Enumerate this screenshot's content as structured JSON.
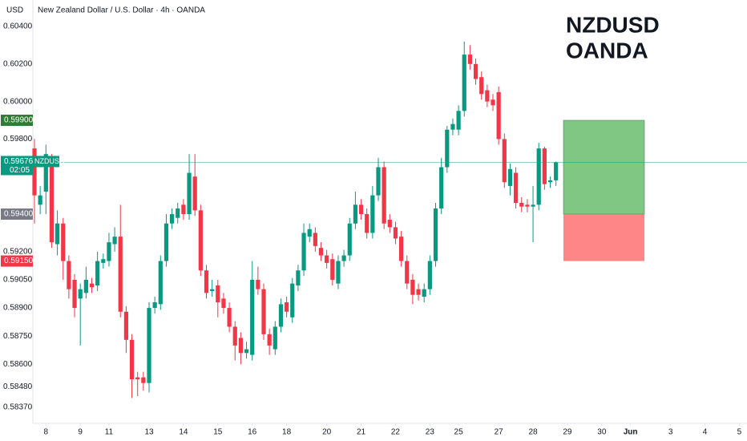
{
  "chart_data": {
    "type": "candlestick",
    "currency": "USD",
    "title": "New Zealand Dollar / U.S. Dollar · 4h · OANDA",
    "annotation": [
      "NZDUSD",
      "OANDA"
    ],
    "up_color": "#089981",
    "down_color": "#f23645",
    "open": [
      0.5975,
      0.5945,
      0.5952,
      0.5968,
      0.5924,
      0.5935,
      0.5915,
      0.5905,
      0.5895,
      0.5898,
      0.5903,
      0.5902,
      0.5914,
      0.5915,
      0.5924,
      0.5928,
      0.5888,
      0.5873,
      0.5853,
      0.5853,
      0.585,
      0.589,
      0.5892,
      0.5915,
      0.5935,
      0.5938,
      0.5945,
      0.594,
      0.596,
      0.5942,
      0.591,
      0.5899,
      0.5902,
      0.5895,
      0.589,
      0.588,
      0.5874,
      0.5866,
      0.5865,
      0.5905,
      0.59,
      0.5876,
      0.5868,
      0.588,
      0.5893,
      0.5885,
      0.5902,
      0.591,
      0.5928,
      0.593,
      0.5922,
      0.5918,
      0.5916,
      0.5903,
      0.5915,
      0.5918,
      0.5935,
      0.5945,
      0.594,
      0.593,
      0.595,
      0.5965,
      0.5937,
      0.5933,
      0.5928,
      0.5915,
      0.5905,
      0.59,
      0.5896,
      0.59,
      0.5915,
      0.5943,
      0.5965,
      0.5985,
      0.5985,
      0.5995,
      0.6025,
      0.602,
      0.6013,
      0.6006,
      0.6001,
      0.6005,
      0.598,
      0.5955,
      0.5962,
      0.5946,
      0.5945,
      0.5944,
      0.5945,
      0.5975,
      0.5957,
      0.5958
    ],
    "high": [
      0.598,
      0.5955,
      0.5977,
      0.5972,
      0.5942,
      0.5938,
      0.5918,
      0.5908,
      0.5903,
      0.5912,
      0.5906,
      0.592,
      0.5919,
      0.593,
      0.5933,
      0.5945,
      0.5891,
      0.5876,
      0.5856,
      0.5856,
      0.5893,
      0.5896,
      0.5918,
      0.594,
      0.5943,
      0.5946,
      0.5948,
      0.5972,
      0.5972,
      0.5945,
      0.5913,
      0.5905,
      0.5905,
      0.5898,
      0.5893,
      0.5883,
      0.5877,
      0.5872,
      0.5915,
      0.5912,
      0.5903,
      0.5879,
      0.5883,
      0.5895,
      0.5896,
      0.5906,
      0.5913,
      0.5935,
      0.5935,
      0.5933,
      0.5925,
      0.5921,
      0.5919,
      0.5918,
      0.5921,
      0.5938,
      0.5952,
      0.5948,
      0.5943,
      0.5955,
      0.597,
      0.5968,
      0.594,
      0.5936,
      0.5931,
      0.5918,
      0.5908,
      0.5903,
      0.5903,
      0.5918,
      0.5946,
      0.597,
      0.5987,
      0.5991,
      0.5998,
      0.6032,
      0.603,
      0.6023,
      0.6016,
      0.6009,
      0.6004,
      0.6008,
      0.5983,
      0.5967,
      0.5965,
      0.5949,
      0.5948,
      0.5955,
      0.5978,
      0.5976,
      0.596,
      0.5968
    ],
    "low": [
      0.5935,
      0.594,
      0.594,
      0.5922,
      0.5918,
      0.5905,
      0.5895,
      0.5885,
      0.587,
      0.5895,
      0.5898,
      0.5899,
      0.5911,
      0.5912,
      0.592,
      0.5885,
      0.5866,
      0.5842,
      0.5843,
      0.5846,
      0.5845,
      0.5887,
      0.5889,
      0.5912,
      0.5932,
      0.5935,
      0.5937,
      0.5937,
      0.5939,
      0.5907,
      0.5895,
      0.5896,
      0.5885,
      0.5887,
      0.5877,
      0.5862,
      0.586,
      0.5863,
      0.5862,
      0.5897,
      0.5873,
      0.5865,
      0.5865,
      0.5877,
      0.5885,
      0.5882,
      0.5899,
      0.5907,
      0.5925,
      0.592,
      0.5915,
      0.5911,
      0.5902,
      0.59,
      0.5912,
      0.5915,
      0.5932,
      0.5937,
      0.5927,
      0.5927,
      0.5947,
      0.5932,
      0.593,
      0.5924,
      0.5912,
      0.59,
      0.5892,
      0.5894,
      0.5893,
      0.5897,
      0.5912,
      0.594,
      0.5962,
      0.5982,
      0.5982,
      0.5992,
      0.6017,
      0.6009,
      0.6001,
      0.5997,
      0.5995,
      0.5977,
      0.5954,
      0.595,
      0.5943,
      0.5941,
      0.5941,
      0.5925,
      0.5942,
      0.5953,
      0.5954,
      0.5955
    ],
    "close": [
      0.595,
      0.595,
      0.5972,
      0.5925,
      0.5935,
      0.5915,
      0.59,
      0.589,
      0.59,
      0.5905,
      0.5901,
      0.5915,
      0.5916,
      0.5925,
      0.5928,
      0.5888,
      0.5873,
      0.5852,
      0.5852,
      0.585,
      0.589,
      0.5893,
      0.5915,
      0.5935,
      0.594,
      0.5943,
      0.594,
      0.5962,
      0.5942,
      0.591,
      0.5898,
      0.59,
      0.5893,
      0.589,
      0.588,
      0.587,
      0.5866,
      0.5868,
      0.5905,
      0.59,
      0.5876,
      0.587,
      0.588,
      0.5892,
      0.5888,
      0.5903,
      0.591,
      0.593,
      0.5932,
      0.5923,
      0.5918,
      0.5914,
      0.5905,
      0.5915,
      0.5918,
      0.5935,
      0.5945,
      0.594,
      0.593,
      0.595,
      0.5965,
      0.5935,
      0.5933,
      0.5927,
      0.5915,
      0.5903,
      0.5897,
      0.5897,
      0.59,
      0.5915,
      0.5943,
      0.5965,
      0.5985,
      0.5988,
      0.5995,
      0.6025,
      0.602,
      0.6012,
      0.6004,
      0.6,
      0.5998,
      0.598,
      0.5957,
      0.5964,
      0.5946,
      0.5944,
      0.5944,
      0.5945,
      0.5975,
      0.5956,
      0.5958,
      0.59676
    ],
    "ylim": [
      0.58285,
      0.60541
    ],
    "yticks": [
      {
        "value": 0.604,
        "label": "0.60400"
      },
      {
        "value": 0.602,
        "label": "0.60200"
      },
      {
        "value": 0.6,
        "label": "0.60000"
      },
      {
        "value": 0.598,
        "label": "0.59800"
      },
      {
        "value": 0.592,
        "label": "0.59200"
      },
      {
        "value": 0.5905,
        "label": "0.59050"
      },
      {
        "value": 0.589,
        "label": "0.58900"
      },
      {
        "value": 0.5875,
        "label": "0.58750"
      },
      {
        "value": 0.586,
        "label": "0.58600"
      },
      {
        "value": 0.5848,
        "label": "0.58480"
      },
      {
        "value": 0.5837,
        "label": "0.58370"
      }
    ],
    "xticks": [
      {
        "value": 2,
        "label": "8"
      },
      {
        "value": 8,
        "label": "9"
      },
      {
        "value": 13,
        "label": "11"
      },
      {
        "value": 20,
        "label": "13"
      },
      {
        "value": 26,
        "label": "14"
      },
      {
        "value": 32,
        "label": "15"
      },
      {
        "value": 38,
        "label": "16"
      },
      {
        "value": 44,
        "label": "18"
      },
      {
        "value": 51,
        "label": "20"
      },
      {
        "value": 57,
        "label": "21"
      },
      {
        "value": 63,
        "label": "22"
      },
      {
        "value": 69,
        "label": "23"
      },
      {
        "value": 74,
        "label": "25"
      },
      {
        "value": 81,
        "label": "27"
      },
      {
        "value": 87,
        "label": "28"
      },
      {
        "value": 93,
        "label": "29"
      },
      {
        "value": 99,
        "label": "30"
      },
      {
        "value": 104,
        "label": "Jun"
      },
      {
        "value": 111,
        "label": "3"
      },
      {
        "value": 117,
        "label": "4"
      },
      {
        "value": 123,
        "label": "5"
      }
    ],
    "price_labels": [
      {
        "value": 0.599,
        "label": "0.59900",
        "color": "#2e7d32"
      },
      {
        "value": 0.59676,
        "label": "0.59676",
        "color": "#089981",
        "symbol": "NZDUSD",
        "countdown": "02:05"
      },
      {
        "value": 0.594,
        "label": "0.59400",
        "color": "#787b86"
      },
      {
        "value": 0.5915,
        "label": "0.59150",
        "color": "#f23645"
      }
    ],
    "position": {
      "target": 0.599,
      "entry": 0.594,
      "stop": 0.5915,
      "profit_color": "#4caf50",
      "loss_color": "#ff5252"
    }
  }
}
